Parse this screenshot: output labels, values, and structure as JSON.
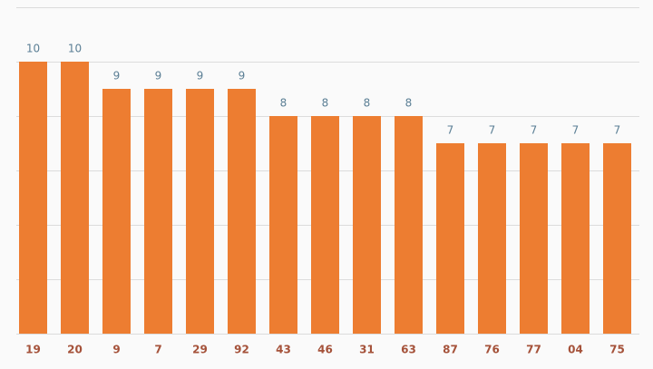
{
  "chart_data": {
    "type": "bar",
    "categories": [
      "19",
      "20",
      "9",
      "7",
      "29",
      "92",
      "43",
      "46",
      "31",
      "63",
      "87",
      "76",
      "77",
      "04",
      "75"
    ],
    "values": [
      10,
      10,
      9,
      9,
      9,
      9,
      8,
      8,
      8,
      8,
      7,
      7,
      7,
      7,
      7
    ],
    "color": "#ed7d31",
    "ylim": [
      0,
      12
    ],
    "yticks": [
      0,
      2,
      4,
      6,
      8,
      10,
      12
    ],
    "grid": true
  }
}
